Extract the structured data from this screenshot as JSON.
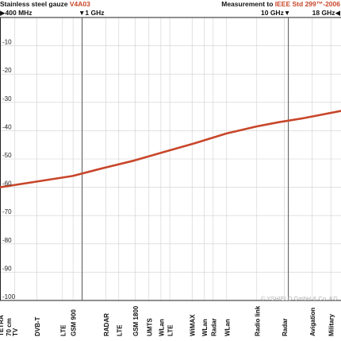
{
  "header": {
    "material_prefix": "Stainless steel gauze ",
    "material_highlight": "V4A03",
    "measurement_prefix": "Measurement to ",
    "measurement_highlight": "IEEE Std 299™-2006",
    "freq_start": "▶400 MHz",
    "freq_marker_1ghz": "▼1 GHz",
    "freq_marker_10ghz": "10 GHz▼",
    "freq_end": "18 GHz◀"
  },
  "copyright": "© YSHIELD GmbH & Co. KG",
  "colors": {
    "curve": "#c8462a",
    "accent": "#c8462a",
    "grid": "#cfcfcf",
    "frame": "#222222"
  },
  "chart_data": {
    "type": "line",
    "title": "Stainless steel gauze V4A03",
    "xlabel": "",
    "ylabel": "",
    "x_scale": "log",
    "xlim": [
      400,
      18000
    ],
    "ylim": [
      -100,
      0
    ],
    "yticks": [
      -10,
      -20,
      -30,
      -40,
      -50,
      -60,
      -70,
      -80,
      -90,
      -100
    ],
    "ytick_labels": [
      "-10",
      "-20",
      "-30",
      "-40",
      "-50",
      "-60",
      "-70",
      "-80",
      "-90",
      "-100"
    ],
    "grid": true,
    "vertical_markers": [
      {
        "label": "1 GHz",
        "x": 1000
      },
      {
        "label": "10 GHz",
        "x": 10000
      }
    ],
    "series": [
      {
        "x": [
          400,
          600,
          900,
          1300,
          1800,
          2500,
          3500,
          5000,
          7000,
          9000,
          12000,
          18000
        ],
        "values": [
          -60,
          -58,
          -56,
          -53,
          -50.5,
          -47.5,
          -44.5,
          -41,
          -38.5,
          -37,
          -35.5,
          -33
        ]
      }
    ],
    "bands": [
      {
        "label": "TETRA\n70 cm",
        "x": 400
      },
      {
        "label": "TV",
        "x": 470
      },
      {
        "label": "DVB-T",
        "x": 600
      },
      {
        "label": "LTE",
        "x": 800
      },
      {
        "label": "GSM 900",
        "x": 900
      },
      {
        "label": "RADAR",
        "x": 1300
      },
      {
        "label": "LTE",
        "x": 1500
      },
      {
        "label": "GSM 1800",
        "x": 1800
      },
      {
        "label": "UMTS",
        "x": 2100
      },
      {
        "label": "WLan",
        "x": 2400
      },
      {
        "label": "LTE",
        "x": 2650
      },
      {
        "label": "WiMAX",
        "x": 3400
      },
      {
        "label": "WLan",
        "x": 3900
      },
      {
        "label": "Radar",
        "x": 4300
      },
      {
        "label": "WLan",
        "x": 5000
      },
      {
        "label": "Radio link",
        "x": 7000
      },
      {
        "label": "Radar",
        "x": 9500
      },
      {
        "label": "Avigation",
        "x": 13000
      },
      {
        "label": "Military",
        "x": 16000
      }
    ]
  }
}
